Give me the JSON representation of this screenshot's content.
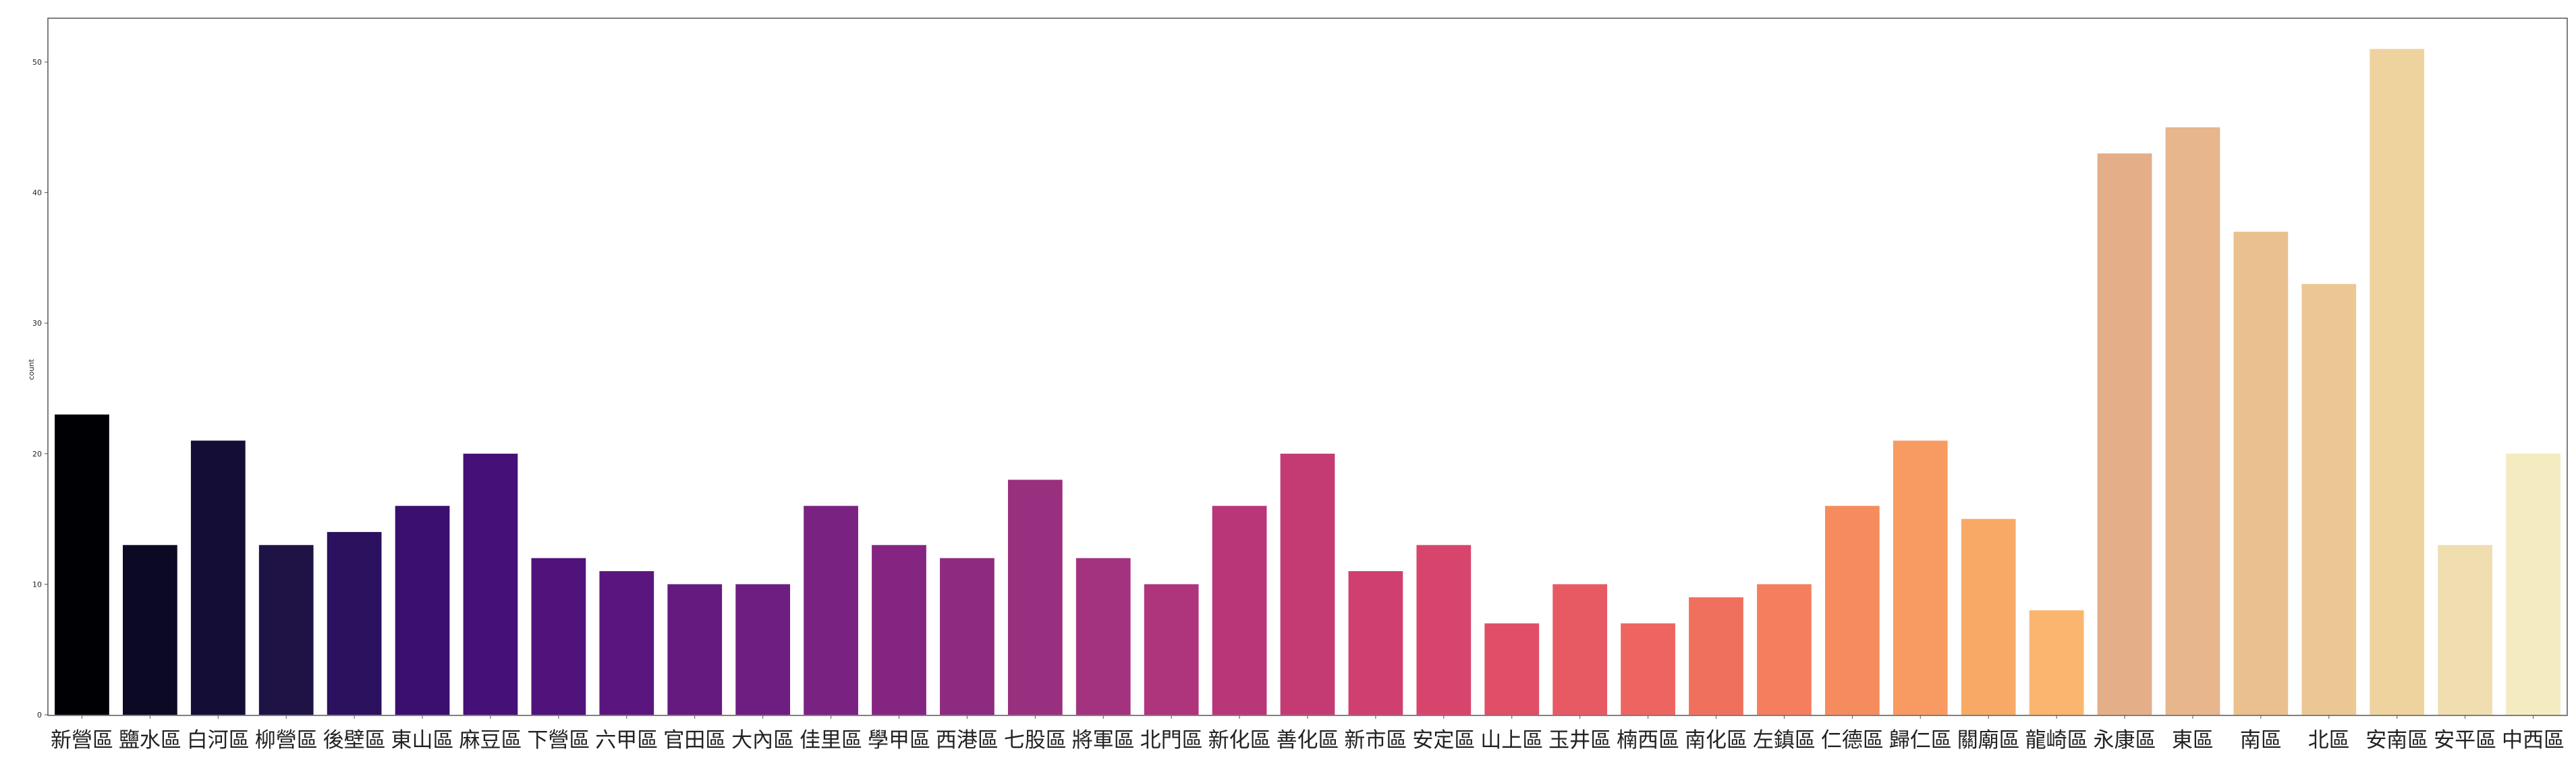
{
  "chart_data": {
    "type": "bar",
    "title": "",
    "xlabel": "",
    "ylabel": "count",
    "ylim": [
      0,
      54
    ],
    "yticks": [
      0,
      10,
      20,
      30,
      40,
      50
    ],
    "grid": false,
    "legend": "none",
    "categories": [
      "新營區",
      "鹽水區",
      "白河區",
      "柳營區",
      "後壁區",
      "東山區",
      "麻豆區",
      "下營區",
      "六甲區",
      "官田區",
      "大內區",
      "佳里區",
      "學甲區",
      "西港區",
      "七股區",
      "將軍區",
      "北門區",
      "新化區",
      "善化區",
      "新市區",
      "安定區",
      "山上區",
      "玉井區",
      "楠西區",
      "南化區",
      "左鎮區",
      "仁德區",
      "歸仁區",
      "關廟區",
      "龍崎區",
      "永康區",
      "東區",
      "南區",
      "北區",
      "安南區",
      "安平區",
      "中西區"
    ],
    "values": [
      23,
      13,
      21,
      13,
      14,
      16,
      20,
      12,
      11,
      10,
      10,
      16,
      13,
      12,
      18,
      12,
      10,
      16,
      20,
      11,
      13,
      7,
      10,
      7,
      9,
      10,
      16,
      21,
      15,
      8,
      43,
      45,
      37,
      33,
      51,
      13,
      20
    ],
    "colors": [
      "#000004",
      "#0b0924",
      "#140e36",
      "#1f1245",
      "#2c115f",
      "#3a0f6e",
      "#451077",
      "#50127b",
      "#5a167e",
      "#651a80",
      "#6e1e81",
      "#792282",
      "#832581",
      "#8e2a80",
      "#99307f",
      "#a3337e",
      "#ae347b",
      "#b93678",
      "#c43b74",
      "#cf3f70",
      "#d8456c",
      "#e04e67",
      "#e75963",
      "#ed6460",
      "#f0705e",
      "#f47e5e",
      "#f68c5e",
      "#f89b62",
      "#f9a966",
      "#fab66f",
      "#e4ae88",
      "#e7b68c",
      "#eac08f",
      "#ebc794",
      "#efd39f",
      "#f0deb1",
      "#f4ebc1"
    ]
  }
}
